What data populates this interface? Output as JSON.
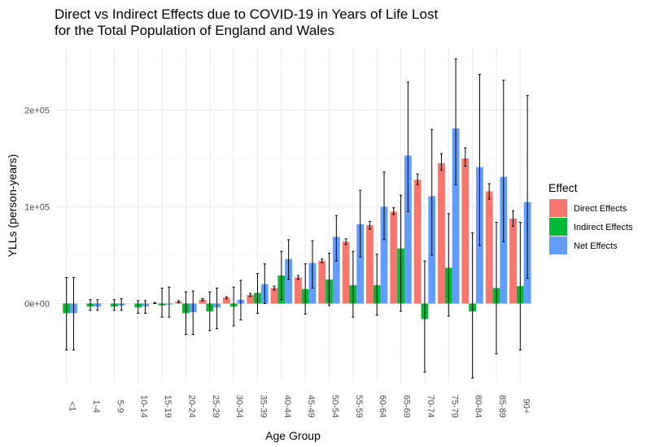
{
  "chart_data": {
    "type": "bar",
    "title_lines": [
      "Direct vs Indirect Effects due to COVID-19 in Years of Life Lost",
      "for the Total Population of England and Wales"
    ],
    "xlabel": "Age Group",
    "ylabel": "YLLs (person-years)",
    "ylim": [
      -72000,
      252000
    ],
    "yticks": [
      {
        "value": 0,
        "label": "0e+00"
      },
      {
        "value": 100000,
        "label": "1e+05"
      },
      {
        "value": 200000,
        "label": "2e+05"
      }
    ],
    "grid": true,
    "legend": {
      "title": "Effect",
      "position": "right"
    },
    "categories": [
      "<1",
      "1-4",
      "5-9",
      "10-14",
      "15-19",
      "20-24",
      "25-29",
      "30-34",
      "35-39",
      "40-44",
      "45-49",
      "50-54",
      "55-59",
      "60-64",
      "65-69",
      "70-74",
      "75-79",
      "80-84",
      "85-89",
      "90+"
    ],
    "series": [
      {
        "name": "Direct Effects",
        "color": "#F8766D",
        "values": [
          0,
          0,
          0,
          0,
          500,
          2000,
          4000,
          6000,
          9000,
          16000,
          27000,
          44000,
          64000,
          81000,
          95000,
          128000,
          145000,
          150000,
          116000,
          88000
        ],
        "lower": [
          0,
          0,
          0,
          0,
          0,
          1000,
          3000,
          5000,
          7500,
          14000,
          25000,
          42000,
          61000,
          77000,
          92000,
          123000,
          138000,
          142000,
          108000,
          80000
        ],
        "upper": [
          0,
          0,
          0,
          0,
          1000,
          3000,
          5000,
          7000,
          10500,
          18000,
          29000,
          46000,
          67000,
          85000,
          99000,
          134000,
          155000,
          161000,
          124000,
          96000
        ]
      },
      {
        "name": "Indirect Effects",
        "color": "#00BA38",
        "values": [
          -10000,
          -3000,
          -3000,
          -4000,
          -2000,
          -10000,
          -8000,
          -3000,
          11000,
          29000,
          15000,
          25000,
          19000,
          19000,
          57000,
          -16000,
          37000,
          -8000,
          16000,
          18000
        ],
        "lower": [
          -48000,
          -7000,
          -7000,
          -10000,
          -14000,
          -32000,
          -28000,
          -23000,
          -10000,
          4000,
          -11000,
          -2000,
          -14000,
          -12000,
          -8000,
          -71000,
          -13000,
          -77000,
          -52000,
          -48000
        ],
        "upper": [
          27000,
          4000,
          4000,
          3000,
          16000,
          12000,
          12000,
          17000,
          31000,
          54000,
          41000,
          52000,
          54000,
          51000,
          112000,
          44000,
          93000,
          73000,
          84000,
          84000
        ]
      },
      {
        "name": "Net Effects",
        "color": "#619CFF",
        "values": [
          -10000,
          -3000,
          -2000,
          -3000,
          -1000,
          -9000,
          -4000,
          4000,
          20000,
          46000,
          42000,
          69000,
          82000,
          100000,
          153000,
          111000,
          181000,
          141000,
          131000,
          105000
        ],
        "lower": [
          -48000,
          -7000,
          -7000,
          -10000,
          -14000,
          -32000,
          -26000,
          -17000,
          0,
          25000,
          16000,
          44000,
          48000,
          66000,
          95000,
          50000,
          123000,
          60000,
          64000,
          26000
        ],
        "upper": [
          27000,
          4000,
          5000,
          3000,
          17000,
          13000,
          16000,
          24000,
          41000,
          66000,
          65000,
          91000,
          117000,
          136000,
          229000,
          180000,
          253000,
          237000,
          231000,
          215000
        ]
      }
    ]
  }
}
